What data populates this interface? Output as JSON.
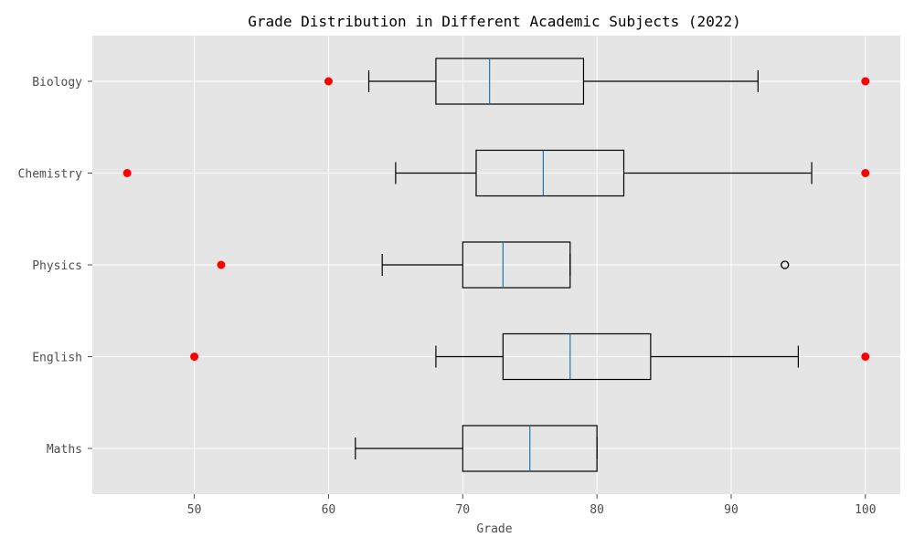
{
  "chart_data": {
    "type": "boxplot",
    "title": "Grade Distribution in Different Academic Subjects (2022)",
    "xlabel": "Grade",
    "ylabel": "",
    "orientation": "horizontal",
    "xlim": [
      42.4,
      102.6
    ],
    "xticks": [
      50,
      60,
      70,
      80,
      90,
      100
    ],
    "grid": true,
    "colors": {
      "background": "#e5e5e5",
      "grid": "#ffffff",
      "box": "#000000",
      "median": "#1f77b4",
      "outlier_marker": "#ff0000"
    },
    "categories": [
      "Biology",
      "Chemistry",
      "Physics",
      "English",
      "Maths"
    ],
    "boxes": [
      {
        "name": "Biology",
        "whisker_low": 63,
        "q1": 68,
        "median": 72,
        "q3": 79,
        "whisker_high": 92,
        "fliers": [],
        "outliers": [
          60,
          100
        ]
      },
      {
        "name": "Chemistry",
        "whisker_low": 65,
        "q1": 71,
        "median": 76,
        "q3": 82,
        "whisker_high": 96,
        "fliers": [],
        "outliers": [
          45,
          100
        ]
      },
      {
        "name": "Physics",
        "whisker_low": 64,
        "q1": 70,
        "median": 73,
        "q3": 78,
        "whisker_high": 78,
        "fliers": [
          94
        ],
        "outliers": [
          52
        ]
      },
      {
        "name": "English",
        "whisker_low": 68,
        "q1": 73,
        "median": 78,
        "q3": 84,
        "whisker_high": 95,
        "fliers": [],
        "outliers": [
          50,
          100
        ]
      },
      {
        "name": "Maths",
        "whisker_low": 62,
        "q1": 70,
        "median": 75,
        "q3": 80,
        "whisker_high": 80,
        "fliers": [],
        "outliers": []
      }
    ]
  }
}
